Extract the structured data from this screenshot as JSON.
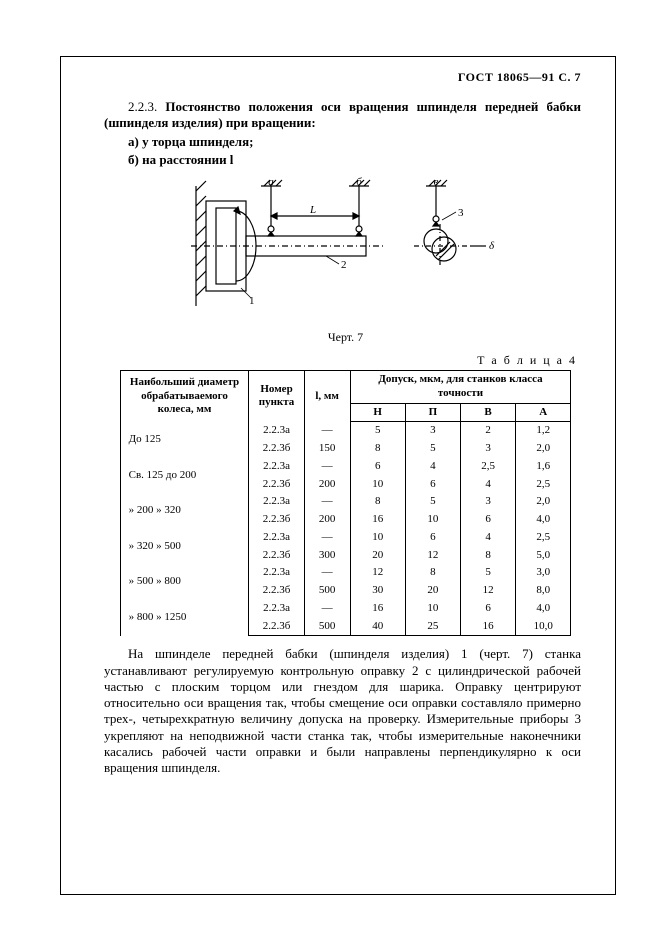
{
  "header": "ГОСТ 18065—91 С. 7",
  "section_number": "2.2.3.",
  "section_title": "Постоянство положения оси вращения шпинделя передней бабки (шпинделя изделия) при вращении:",
  "sub_a": "а) у торца шпинделя;",
  "sub_b": "б) на расстоянии l",
  "figure_caption": "Черт. 7",
  "figure": {
    "labels_top": [
      "а",
      "б",
      "в"
    ],
    "l_text": "L",
    "num_labels": [
      "1",
      "2",
      "3"
    ],
    "delta": "δ"
  },
  "table_title": "Т а б л и ц а 4",
  "table": {
    "headers": {
      "col1": "Наибольший диаметр обрабатываемого колеса, мм",
      "col2": "Номер пункта",
      "col3": "l, мм",
      "tol_span": "Допуск, мкм, для станков класса точности",
      "t_H": "Н",
      "t_P": "П",
      "t_V": "В",
      "t_A": "А"
    },
    "rows": [
      {
        "range": "До  125",
        "pts": [
          "2.2.3а",
          "2.2.3б"
        ],
        "l": [
          "—",
          "150"
        ],
        "H": [
          "5",
          "8"
        ],
        "P": [
          "3",
          "5"
        ],
        "V": [
          "2",
          "3"
        ],
        "A": [
          "1,2",
          "2,0"
        ]
      },
      {
        "range": "Св. 125 до  200",
        "pts": [
          "2.2.3а",
          "2.2.3б"
        ],
        "l": [
          "—",
          "200"
        ],
        "H": [
          "6",
          "10"
        ],
        "P": [
          "4",
          "6"
        ],
        "V": [
          "2,5",
          "4"
        ],
        "A": [
          "1,6",
          "2,5"
        ]
      },
      {
        "range": "»  200  »  320",
        "pts": [
          "2.2.3а",
          "2.2.3б"
        ],
        "l": [
          "—",
          "200"
        ],
        "H": [
          "8",
          "16"
        ],
        "P": [
          "5",
          "10"
        ],
        "V": [
          "3",
          "6"
        ],
        "A": [
          "2,0",
          "4,0"
        ]
      },
      {
        "range": "»  320  »  500",
        "pts": [
          "2.2.3а",
          "2.2.3б"
        ],
        "l": [
          "—",
          "300"
        ],
        "H": [
          "10",
          "20"
        ],
        "P": [
          "6",
          "12"
        ],
        "V": [
          "4",
          "8"
        ],
        "A": [
          "2,5",
          "5,0"
        ]
      },
      {
        "range": "»  500  »  800",
        "pts": [
          "2.2.3а",
          "2.2.3б"
        ],
        "l": [
          "—",
          "500"
        ],
        "H": [
          "12",
          "30"
        ],
        "P": [
          "8",
          "20"
        ],
        "V": [
          "5",
          "12"
        ],
        "A": [
          "3,0",
          "8,0"
        ]
      },
      {
        "range": "»  800  » 1250",
        "pts": [
          "2.2.3а",
          "2.2.3б"
        ],
        "l": [
          "—",
          "500"
        ],
        "H": [
          "16",
          "40"
        ],
        "P": [
          "10",
          "25"
        ],
        "V": [
          "6",
          "16"
        ],
        "A": [
          "4,0",
          "10,0"
        ]
      }
    ]
  },
  "body_text": "На шпинделе передней бабки (шпинделя изделия) 1 (черт. 7) станка устанавливают регулируемую контрольную оправку 2 с цилиндрической рабочей частью с плоским торцом или гнездом для шарика. Оправку центрируют относительно оси вращения так, чтобы смещение оси оправки составляло примерно трех-, четырехкратную величину допуска на проверку. Измерительные приборы 3 укрепляют на неподвижной части станка так, чтобы измерительные наконечники касались рабочей части оправки и были направлены перпендикулярно к оси вращения шпинделя."
}
